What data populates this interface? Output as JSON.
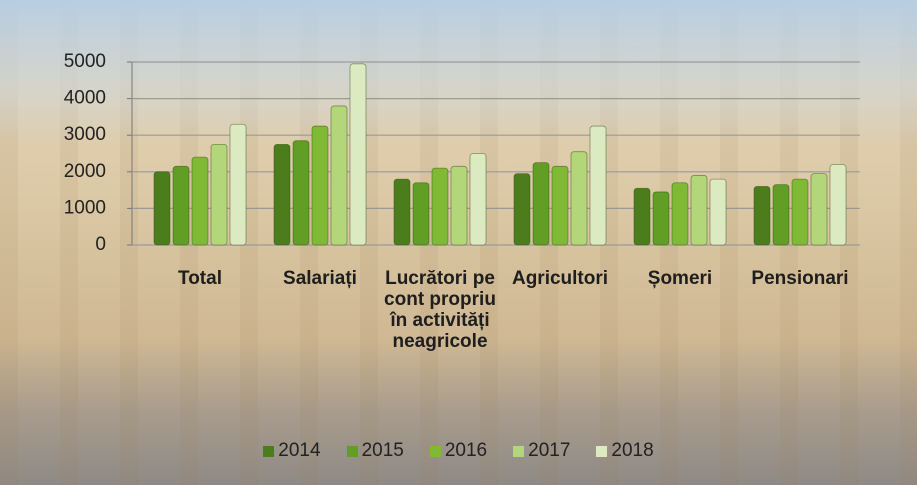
{
  "chart_data": {
    "type": "bar",
    "categories": [
      "Total",
      "Salariați",
      "Lucrători pe cont propriu în activități neagricole",
      "Agricultori",
      "Șomeri",
      "Pensionari"
    ],
    "series": [
      {
        "name": "2014",
        "color": "#4c7d1c",
        "values": [
          2000,
          2750,
          1800,
          1950,
          1550,
          1600
        ]
      },
      {
        "name": "2015",
        "color": "#629d25",
        "values": [
          2150,
          2850,
          1700,
          2250,
          1450,
          1650
        ]
      },
      {
        "name": "2016",
        "color": "#80b934",
        "values": [
          2400,
          3250,
          2100,
          2150,
          1700,
          1800
        ]
      },
      {
        "name": "2017",
        "color": "#b4d67a",
        "values": [
          2750,
          3800,
          2150,
          2550,
          1900,
          1950
        ]
      },
      {
        "name": "2018",
        "color": "#dbeac0",
        "values": [
          3300,
          4950,
          2500,
          3250,
          1800,
          2200
        ]
      }
    ],
    "ylim": [
      0,
      5000
    ],
    "yticks": [
      0,
      1000,
      2000,
      3000,
      4000,
      5000
    ],
    "grid": true,
    "legend": "bottom"
  }
}
